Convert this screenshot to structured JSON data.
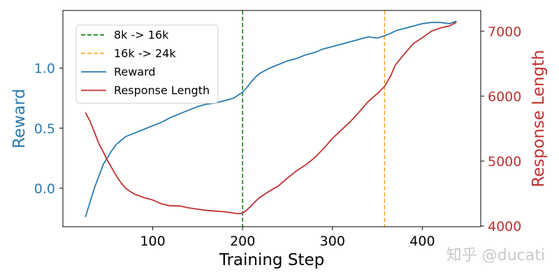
{
  "chart_data": {
    "type": "line",
    "xlabel": "Training Step",
    "ylabel_left": "Reward",
    "ylabel_right": "Response Length",
    "xlim": [
      0,
      465
    ],
    "ylim_left": [
      -0.32,
      1.48
    ],
    "ylim_right": [
      3990,
      7320
    ],
    "xticks": [
      100,
      200,
      300,
      400
    ],
    "yticks_left": [
      0.0,
      0.5,
      1.0
    ],
    "yticks_right": [
      4000,
      5000,
      6000,
      7000
    ],
    "yticklabels_left": [
      "0.0",
      "0.5",
      "1.0"
    ],
    "grid": false,
    "legend_position": "top-left",
    "colors": {
      "reward": "#2a7ab0",
      "length": "#c0302f",
      "vline_8k": "#1a7f1a",
      "vline_16k": "#f5a623",
      "left_axis_label": "#2a7ab0",
      "right_axis_label": "#c0302f"
    },
    "vlines": [
      {
        "name": "8k -> 16k",
        "x": 200,
        "color": "#1a7f1a"
      },
      {
        "name": "16k -> 24k",
        "x": 358,
        "color": "#f5a623"
      }
    ],
    "legend": [
      {
        "label": "8k -> 16k",
        "style": "dashed",
        "color": "#1a7f1a"
      },
      {
        "label": "16k -> 24k",
        "style": "dashed",
        "color": "#f5a623"
      },
      {
        "label": "Reward",
        "style": "solid",
        "color": "#2a7ab0"
      },
      {
        "label": "Response Length",
        "style": "solid",
        "color": "#c0302f"
      }
    ],
    "series": [
      {
        "name": "Reward",
        "axis": "left",
        "x": [
          25,
          30,
          35,
          40,
          45,
          50,
          55,
          60,
          65,
          70,
          80,
          90,
          100,
          110,
          120,
          130,
          140,
          150,
          160,
          170,
          180,
          190,
          200,
          205,
          210,
          215,
          220,
          230,
          240,
          250,
          260,
          270,
          280,
          290,
          300,
          310,
          320,
          330,
          340,
          350,
          358,
          365,
          370,
          380,
          390,
          400,
          410,
          420,
          430,
          438
        ],
        "y": [
          -0.24,
          -0.12,
          0.0,
          0.1,
          0.2,
          0.26,
          0.32,
          0.37,
          0.4,
          0.43,
          0.46,
          0.49,
          0.52,
          0.55,
          0.59,
          0.62,
          0.65,
          0.68,
          0.7,
          0.71,
          0.73,
          0.75,
          0.8,
          0.84,
          0.89,
          0.93,
          0.96,
          1.0,
          1.03,
          1.06,
          1.08,
          1.11,
          1.13,
          1.16,
          1.18,
          1.2,
          1.22,
          1.24,
          1.26,
          1.25,
          1.27,
          1.29,
          1.31,
          1.33,
          1.35,
          1.37,
          1.38,
          1.38,
          1.37,
          1.39
        ]
      },
      {
        "name": "Response Length",
        "axis": "right",
        "x": [
          25,
          30,
          35,
          40,
          45,
          50,
          55,
          60,
          65,
          70,
          75,
          80,
          90,
          100,
          110,
          120,
          130,
          140,
          150,
          160,
          170,
          180,
          190,
          195,
          200,
          205,
          210,
          215,
          220,
          230,
          240,
          250,
          260,
          270,
          280,
          290,
          300,
          310,
          320,
          330,
          340,
          350,
          358,
          365,
          370,
          380,
          390,
          400,
          410,
          420,
          430,
          438
        ],
        "y": [
          5750,
          5620,
          5450,
          5270,
          5140,
          5000,
          4880,
          4760,
          4660,
          4580,
          4530,
          4490,
          4440,
          4400,
          4340,
          4310,
          4310,
          4280,
          4260,
          4240,
          4230,
          4220,
          4200,
          4190,
          4200,
          4250,
          4320,
          4390,
          4450,
          4540,
          4620,
          4740,
          4850,
          4940,
          5050,
          5190,
          5350,
          5480,
          5610,
          5760,
          5920,
          6040,
          6150,
          6320,
          6480,
          6650,
          6810,
          6900,
          7000,
          7050,
          7080,
          7140
        ]
      }
    ]
  },
  "watermark": "知乎 @ducati"
}
